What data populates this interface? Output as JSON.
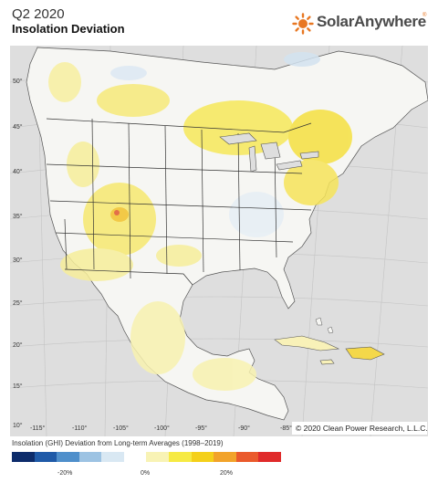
{
  "header": {
    "title": "Q2 2020",
    "subtitle": "Insolation Deviation",
    "logo_text": "SolarAnywhere",
    "logo_reg": "®"
  },
  "map": {
    "latitude_labels": [
      "50°",
      "45°",
      "40°",
      "35°",
      "30°",
      "25°",
      "20°",
      "15°",
      "10°"
    ],
    "longitude_labels": [
      "-115°",
      "-110°",
      "-105°",
      "-100°",
      "-95°",
      "-90°",
      "-85°"
    ],
    "copyright": "© 2020 Clean Power Research, L.L.C.",
    "colors": {
      "ocean": "#dedede",
      "land": "#f7f7f4",
      "border": "#333333",
      "grid": "#bdbdbd",
      "accent": "#e87722"
    }
  },
  "legend": {
    "title": "Insolation (GHI) Deviation from Long-term Averages (1998–2019)",
    "ticks": [
      "-20%",
      "0%",
      "20%"
    ],
    "colors": [
      "#0d2c6b",
      "#1f5aa8",
      "#4f8fcb",
      "#9dc3e3",
      "#d9e8f3",
      "#ffffff",
      "#f8f3b5",
      "#f6ea44",
      "#f4d01a",
      "#f2a32a",
      "#ea5a2c",
      "#e02a2a"
    ]
  }
}
